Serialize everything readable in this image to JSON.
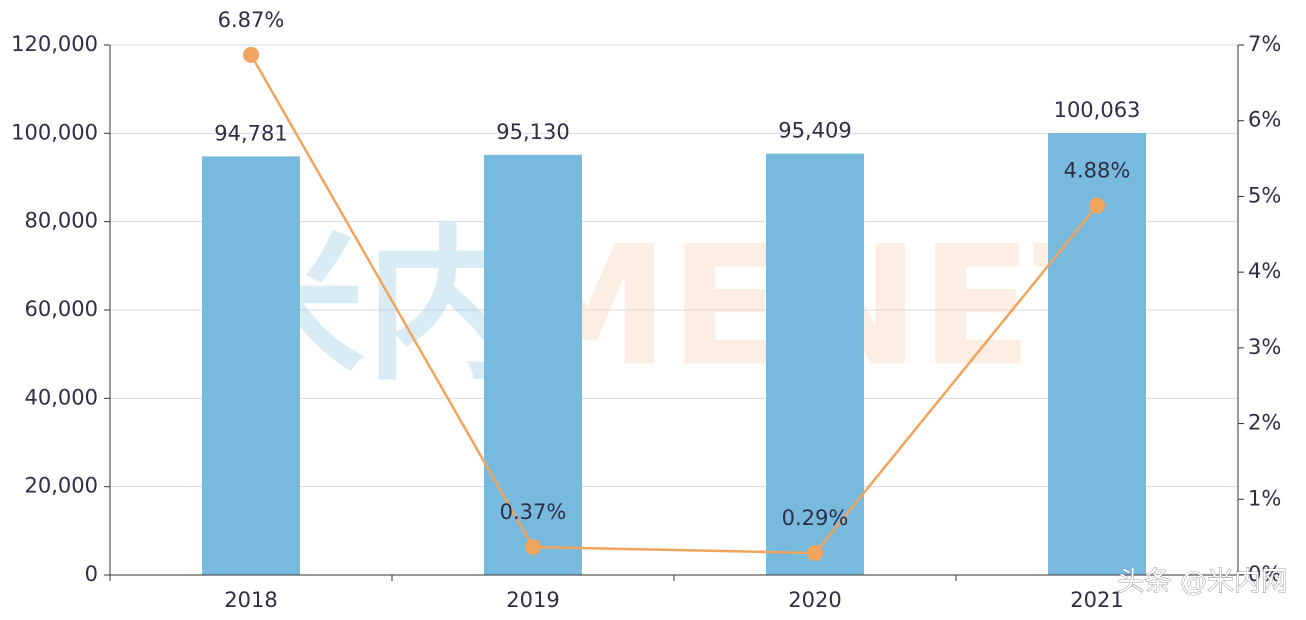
{
  "chart_data": {
    "type": "bar",
    "categories": [
      "2018",
      "2019",
      "2020",
      "2021"
    ],
    "series": [
      {
        "type": "bar",
        "color": "#78bade",
        "values": [
          94781,
          95130,
          95409,
          100063
        ],
        "value_labels": [
          "94,781",
          "95,130",
          "95,409",
          "100,063"
        ]
      },
      {
        "type": "line",
        "axis": "y2",
        "color": "#f0a45e",
        "values": [
          6.87,
          0.37,
          0.29,
          4.88
        ],
        "value_labels": [
          "6.87%",
          "0.37%",
          "0.29%",
          "4.88%"
        ]
      }
    ],
    "ylim": [
      0,
      120000
    ],
    "yticks": [
      0,
      {
        "value": 20000,
        "label": "20,000"
      },
      {
        "value": 40000,
        "label": "40,000"
      },
      {
        "value": 60000,
        "label": "60,000"
      },
      {
        "value": 80000,
        "label": "80,000"
      },
      {
        "value": 100000,
        "label": "100,000"
      },
      {
        "value": 120000,
        "label": "120,000"
      }
    ],
    "y2lim": [
      0,
      7
    ],
    "y2ticks": [
      {
        "value": 0,
        "label": "0%"
      },
      {
        "value": 1,
        "label": "1%"
      },
      {
        "value": 2,
        "label": "2%"
      },
      {
        "value": 3,
        "label": "3%"
      },
      {
        "value": 4,
        "label": "4%"
      },
      {
        "value": 5,
        "label": "5%"
      },
      {
        "value": 6,
        "label": "6%"
      },
      {
        "value": 7,
        "label": "7%"
      }
    ],
    "grid": true,
    "watermarks": [
      "米内",
      "MENET"
    ],
    "credit": "头条 @米内网"
  }
}
